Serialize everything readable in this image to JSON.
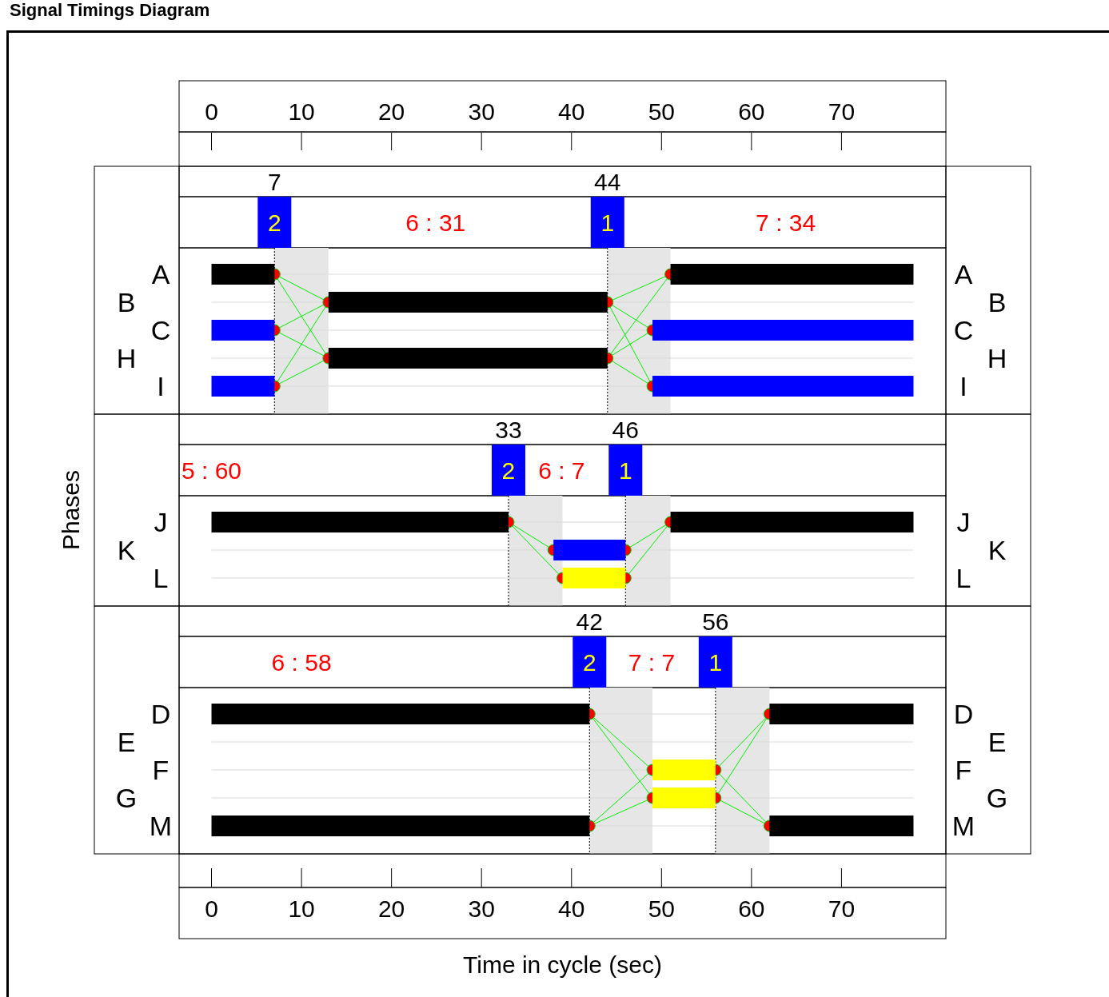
{
  "chart_data": [
    {
      "type": "bar",
      "orientation": "horizontal",
      "title": "Signal Timings Diagram",
      "categories": [
        "A",
        "B",
        "C",
        "H",
        "I"
      ],
      "series": [
        {
          "colors": [
            "#000000",
            "#000000",
            "#0000ff",
            "#000000",
            "#0000ff"
          ],
          "base": [
            0,
            13,
            0,
            13,
            0
          ],
          "values": [
            7,
            31,
            7,
            31,
            7
          ]
        },
        {
          "colors": [
            "#000000",
            null,
            "#0000ff",
            null,
            "#0000ff"
          ],
          "base": [
            51,
            null,
            49,
            null,
            49
          ],
          "values": [
            27,
            null,
            29,
            null,
            29
          ]
        }
      ],
      "xlim": [
        -3.6,
        81.6
      ],
      "x2lim": [
        -3.6,
        81.6
      ],
      "x2ticks": [
        0,
        10,
        20,
        30,
        40,
        50,
        60,
        70
      ],
      "tick_labels": "y",
      "grid": "y",
      "marker": "circle",
      "ref_lines": [
        {
          "axis": "x",
          "value": 7,
          "label": "7",
          "line_style": "dotted"
        },
        {
          "axis": "x",
          "value": 44,
          "label": "44",
          "line_style": "dotted"
        }
      ],
      "bands": [
        {
          "axis": "x",
          "from": 7,
          "to": 13,
          "color": "#e6e6e6"
        },
        {
          "axis": "x",
          "from": 44,
          "to": 51,
          "color": "#e6e6e6"
        }
      ],
      "annotations": [
        "2",
        "1",
        "6 : 31",
        "7 : 34"
      ]
    },
    {
      "type": "bar",
      "orientation": "horizontal",
      "ylabel": "Phases",
      "categories": [
        "J",
        "K",
        "L"
      ],
      "series": [
        {
          "colors": [
            "#000000",
            "#0000ff",
            "#ffff00"
          ],
          "base": [
            0,
            38,
            39
          ],
          "values": [
            33,
            8,
            7
          ]
        },
        {
          "colors": [
            "#000000",
            null,
            null
          ],
          "base": [
            51,
            null,
            null
          ],
          "values": [
            27,
            null,
            null
          ]
        }
      ],
      "xlim": [
        -3.6,
        81.6
      ],
      "tick_labels": "y",
      "grid": "y",
      "marker": "circle",
      "ref_lines": [
        {
          "axis": "x",
          "value": 33,
          "label": "33",
          "line_style": "dotted"
        },
        {
          "axis": "x",
          "value": 46,
          "label": "46",
          "line_style": "dotted"
        }
      ],
      "bands": [
        {
          "axis": "x",
          "from": 33,
          "to": 39,
          "color": "#e6e6e6"
        },
        {
          "axis": "x",
          "from": 46,
          "to": 51,
          "color": "#e6e6e6"
        }
      ],
      "annotations": [
        "2",
        "1",
        "5 : 60",
        "6 : 7"
      ]
    },
    {
      "type": "bar",
      "orientation": "horizontal",
      "xlabel": "Time in cycle (sec)",
      "categories": [
        "D",
        "E",
        "F",
        "G",
        "M"
      ],
      "series": [
        {
          "colors": [
            "#000000",
            null,
            "#ffff00",
            "#ffff00",
            "#000000"
          ],
          "base": [
            0,
            null,
            49,
            49,
            0
          ],
          "values": [
            42,
            null,
            7,
            7,
            42
          ]
        },
        {
          "colors": [
            "#000000",
            null,
            null,
            null,
            "#000000"
          ],
          "base": [
            62,
            null,
            null,
            null,
            62
          ],
          "values": [
            16,
            null,
            null,
            null,
            16
          ]
        }
      ],
      "xlim": [
        -3.6,
        81.6
      ],
      "xticks": [
        0,
        10,
        20,
        30,
        40,
        50,
        60,
        70
      ],
      "grid": "y",
      "marker": "circle",
      "ref_lines": [
        {
          "axis": "x",
          "value": 42,
          "label": "42",
          "line_style": "dotted"
        },
        {
          "axis": "x",
          "value": 56,
          "label": "56",
          "line_style": "dotted"
        }
      ],
      "bands": [
        {
          "axis": "x",
          "from": 42,
          "to": 49,
          "color": "#e6e6e6"
        },
        {
          "axis": "x",
          "from": 56,
          "to": 62,
          "color": "#e6e6e6"
        }
      ],
      "annotations": [
        "2",
        "1",
        "6 : 58",
        "7 : 7"
      ]
    }
  ]
}
